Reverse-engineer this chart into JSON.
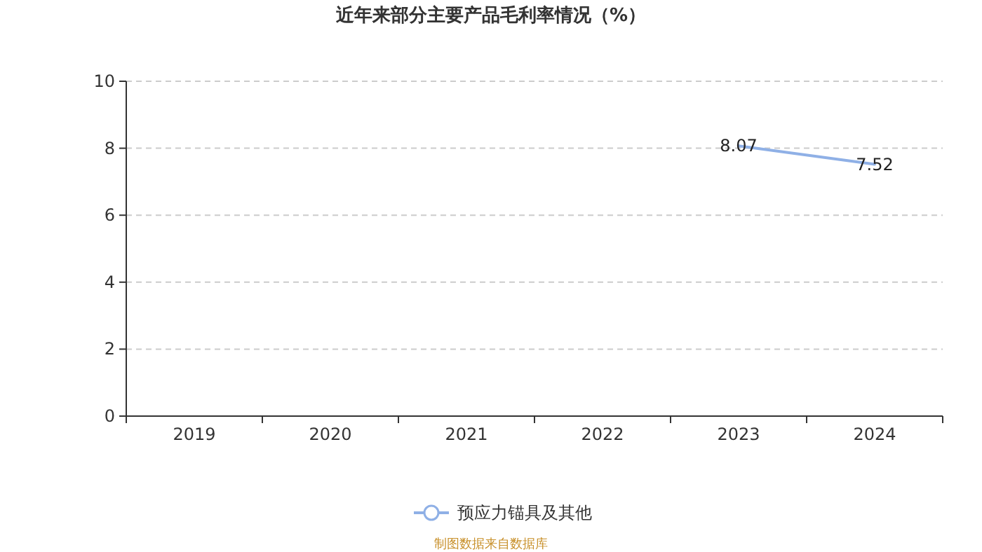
{
  "chart_data": {
    "type": "line",
    "title": "近年来部分主要产品毛利率情况（%）",
    "categories": [
      "2019",
      "2020",
      "2021",
      "2022",
      "2023",
      "2024"
    ],
    "series": [
      {
        "name": "预应力锚具及其他",
        "color": "#8fb0e6",
        "values": [
          null,
          null,
          null,
          null,
          8.07,
          7.52
        ]
      }
    ],
    "ylim": [
      0,
      10
    ],
    "yticks": [
      0,
      2,
      4,
      6,
      8,
      10
    ],
    "grid": "y",
    "legend": "bottom",
    "data_labels": true,
    "annotations": [
      "制图数据来自数据库"
    ]
  }
}
